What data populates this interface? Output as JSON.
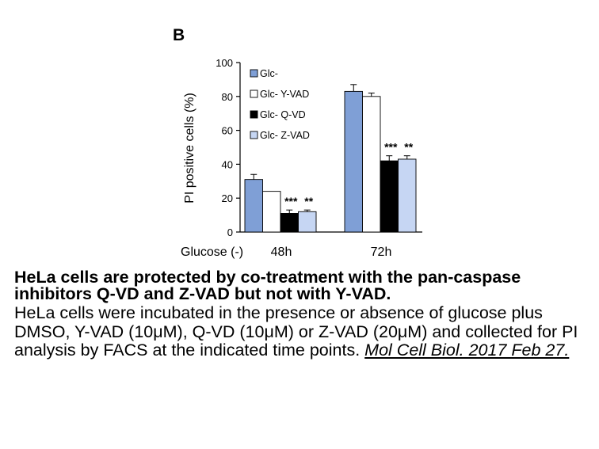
{
  "panel_label": "B",
  "chart_data": {
    "type": "bar",
    "xlabel": "Glucose (-)",
    "ylabel": "PI positive cells (%)",
    "ylim": [
      0,
      100
    ],
    "yticks": [
      0,
      20,
      40,
      60,
      80,
      100
    ],
    "categories": [
      "48h",
      "72h"
    ],
    "legend_position": "top-left",
    "series": [
      {
        "name": "Glc-",
        "color": "#7f9fd6",
        "values": [
          31,
          83
        ],
        "errors": [
          3,
          4
        ]
      },
      {
        "name": "Glc- Y-VAD",
        "color": "#ffffff",
        "values": [
          24,
          80
        ],
        "errors": [
          0,
          2
        ]
      },
      {
        "name": "Glc- Q-VD",
        "color": "#000000",
        "values": [
          11,
          42
        ],
        "errors": [
          2,
          3
        ]
      },
      {
        "name": "Glc- Z-VAD",
        "color": "#c6d6f3",
        "values": [
          12,
          43
        ],
        "errors": [
          1,
          2
        ]
      }
    ],
    "annotations": [
      {
        "category": "48h",
        "series": "Glc- Q-VD",
        "text": "***"
      },
      {
        "category": "48h",
        "series": "Glc- Z-VAD",
        "text": "**"
      },
      {
        "category": "72h",
        "series": "Glc- Q-VD",
        "text": "***"
      },
      {
        "category": "72h",
        "series": "Glc- Z-VAD",
        "text": "**"
      }
    ]
  },
  "caption": {
    "title": "HeLa cells are protected by co-treatment with the pan-caspase inhibitors Q-VD and Z-VAD but not with Y-VAD.",
    "body": "HeLa cells were incubated in the presence or absence of glucose plus DMSO, Y-VAD (10μM), Q-VD (10μM) or Z-VAD (20μM) and collected for PI analysis by FACS at the indicated time points. ",
    "citation": "Mol Cell Biol. 2017 Feb 27."
  }
}
